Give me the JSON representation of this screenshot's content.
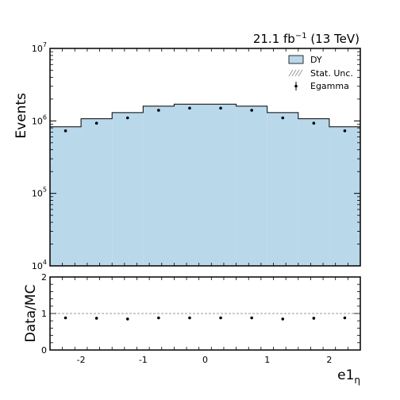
{
  "chart_data": [
    {
      "type": "bar",
      "panel": "main",
      "title": "",
      "annotation_top_right": {
        "lumi": "21.1 fb",
        "lumi_exp": "−1",
        "energy": " (13 TeV)"
      },
      "ylabel": "Events",
      "xlabel": "",
      "y_scale": "log",
      "ylim": [
        10000,
        10000000
      ],
      "xlim": [
        -2.5,
        2.5
      ],
      "bin_edges": [
        -2.5,
        -2.0,
        -1.5,
        -1.0,
        -0.5,
        0.0,
        0.5,
        1.0,
        1.5,
        2.0,
        2.5
      ],
      "y_ticks": [
        {
          "value": 10000,
          "base": "10",
          "exp": "4"
        },
        {
          "value": 100000,
          "base": "10",
          "exp": "5"
        },
        {
          "value": 1000000,
          "base": "10",
          "exp": "6"
        },
        {
          "value": 10000000,
          "base": "10",
          "exp": "7"
        }
      ],
      "series": [
        {
          "name": "DY",
          "kind": "stacked-hist",
          "color": "#b9d8ea",
          "values": [
            830000,
            1070000,
            1300000,
            1600000,
            1700000,
            1700000,
            1600000,
            1300000,
            1070000,
            830000
          ]
        },
        {
          "name": "Stat. Unc.",
          "kind": "hatched-band",
          "color": "#888888"
        },
        {
          "name": "Egamma",
          "kind": "data-points",
          "color": "#000000",
          "x": [
            -2.25,
            -1.75,
            -1.25,
            -0.75,
            -0.25,
            0.25,
            0.75,
            1.25,
            1.75,
            2.25
          ],
          "values": [
            730000,
            930000,
            1100000,
            1400000,
            1500000,
            1500000,
            1400000,
            1100000,
            930000,
            730000
          ]
        }
      ],
      "legend_position": "top-right"
    },
    {
      "type": "scatter",
      "panel": "ratio",
      "ylabel": "Data/MC",
      "xlabel": "e1",
      "xlabel_sub": "η",
      "ylim": [
        0,
        2
      ],
      "xlim": [
        -2.5,
        2.5
      ],
      "y_ticks": [
        0,
        1,
        2
      ],
      "x_ticks": [
        -2,
        -1,
        0,
        1,
        2
      ],
      "reference_line": 1,
      "series": [
        {
          "name": "Data/MC",
          "color": "#000000",
          "x": [
            -2.25,
            -1.75,
            -1.25,
            -0.75,
            -0.25,
            0.25,
            0.75,
            1.25,
            1.75,
            2.25
          ],
          "values": [
            0.88,
            0.87,
            0.85,
            0.88,
            0.88,
            0.88,
            0.88,
            0.85,
            0.87,
            0.88
          ]
        }
      ]
    }
  ]
}
